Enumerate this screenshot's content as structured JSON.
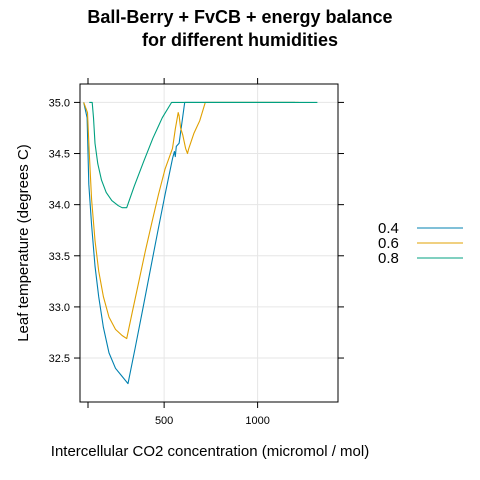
{
  "chart_data": {
    "type": "line",
    "title_line1": "Ball-Berry + FvCB + energy balance",
    "title_line2": "for different humidities",
    "xlabel": "Intercellular CO2 concentration (micromol / mol)",
    "ylabel": "Leaf temperature (degrees C)",
    "xlim": [
      50,
      1430
    ],
    "ylim": [
      32.07,
      35.18
    ],
    "x_ticks": [
      500,
      1000
    ],
    "y_ticks": [
      32.5,
      33.0,
      33.5,
      34.0,
      34.5,
      35.0
    ],
    "y_tick_labels": [
      "32.5",
      "33.0",
      "33.5",
      "34.0",
      "34.5",
      "35.0"
    ],
    "grid": true,
    "legend_position": "right",
    "series": [
      {
        "name": "0.4",
        "color": "#0080B0",
        "points": [
          [
            70,
            35.0
          ],
          [
            88,
            34.85
          ],
          [
            97,
            34.2
          ],
          [
            112,
            33.8
          ],
          [
            130,
            33.4
          ],
          [
            150,
            33.1
          ],
          [
            175,
            32.8
          ],
          [
            205,
            32.55
          ],
          [
            240,
            32.4
          ],
          [
            275,
            32.32
          ],
          [
            307,
            32.25
          ],
          [
            345,
            32.6
          ],
          [
            385,
            32.97
          ],
          [
            425,
            33.35
          ],
          [
            465,
            33.73
          ],
          [
            505,
            34.1
          ],
          [
            545,
            34.45
          ],
          [
            555,
            34.52
          ],
          [
            560,
            34.47
          ],
          [
            565,
            34.57
          ],
          [
            580,
            34.6
          ],
          [
            610,
            35.0
          ],
          [
            640,
            35.0
          ],
          [
            900,
            35.0
          ],
          [
            1200,
            35.0
          ]
        ]
      },
      {
        "name": "0.6",
        "color": "#E0A000",
        "points": [
          [
            70,
            35.0
          ],
          [
            90,
            34.9
          ],
          [
            100,
            34.5
          ],
          [
            112,
            34.05
          ],
          [
            130,
            33.65
          ],
          [
            150,
            33.35
          ],
          [
            175,
            33.1
          ],
          [
            205,
            32.9
          ],
          [
            240,
            32.78
          ],
          [
            275,
            32.72
          ],
          [
            300,
            32.69
          ],
          [
            330,
            32.95
          ],
          [
            365,
            33.25
          ],
          [
            400,
            33.55
          ],
          [
            435,
            33.83
          ],
          [
            470,
            34.1
          ],
          [
            505,
            34.35
          ],
          [
            545,
            34.55
          ],
          [
            560,
            34.74
          ],
          [
            575,
            34.9
          ],
          [
            580,
            34.87
          ],
          [
            588,
            34.75
          ],
          [
            600,
            34.68
          ],
          [
            615,
            34.55
          ],
          [
            625,
            34.5
          ],
          [
            632,
            34.55
          ],
          [
            660,
            34.7
          ],
          [
            690,
            34.82
          ],
          [
            720,
            35.0
          ],
          [
            900,
            35.0
          ],
          [
            1220,
            35.0
          ]
        ]
      },
      {
        "name": "0.8",
        "color": "#00A080",
        "points": [
          [
            100,
            35.0
          ],
          [
            115,
            35.0
          ],
          [
            122,
            34.85
          ],
          [
            130,
            34.6
          ],
          [
            145,
            34.4
          ],
          [
            165,
            34.24
          ],
          [
            190,
            34.12
          ],
          [
            220,
            34.04
          ],
          [
            255,
            33.99
          ],
          [
            275,
            33.97
          ],
          [
            300,
            33.97
          ],
          [
            340,
            34.18
          ],
          [
            390,
            34.42
          ],
          [
            440,
            34.65
          ],
          [
            490,
            34.85
          ],
          [
            540,
            35.0
          ],
          [
            700,
            35.0
          ],
          [
            1000,
            35.0
          ],
          [
            1320,
            35.0
          ]
        ]
      }
    ]
  },
  "colors": {
    "axis": "#000000",
    "grid": "#e6e6e6"
  }
}
